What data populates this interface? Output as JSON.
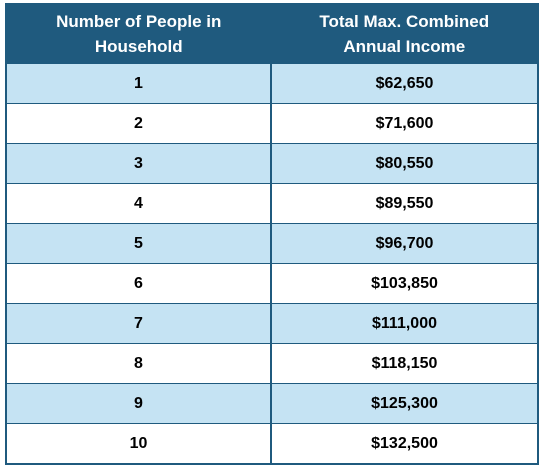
{
  "table": {
    "headers": [
      [
        "Number of People in",
        "Household"
      ],
      [
        "Total Max. Combined",
        "Annual Income"
      ]
    ],
    "rows": [
      [
        "1",
        "$62,650"
      ],
      [
        "2",
        "$71,600"
      ],
      [
        "3",
        "$80,550"
      ],
      [
        "4",
        "$89,550"
      ],
      [
        "5",
        "$96,700"
      ],
      [
        "6",
        "$103,850"
      ],
      [
        "7",
        "$111,000"
      ],
      [
        "8",
        "$118,150"
      ],
      [
        "9",
        "$125,300"
      ],
      [
        "10",
        "$132,500"
      ]
    ]
  },
  "colors": {
    "header_bg": "#1f5a7e",
    "header_text": "#ffffff",
    "row_shaded": "#c5e3f3",
    "row_plain": "#ffffff",
    "border": "#1f5a7e"
  }
}
